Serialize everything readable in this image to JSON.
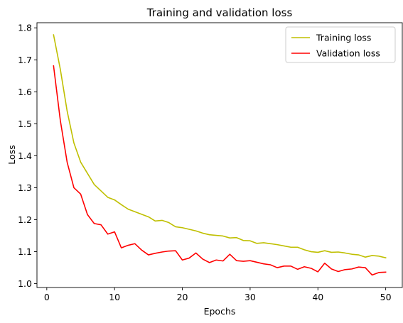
{
  "chart_data": {
    "type": "line",
    "title": "Training and validation loss",
    "xlabel": "Epochs",
    "ylabel": "Loss",
    "xlim": [
      -1.45,
      52.45
    ],
    "ylim": [
      0.988,
      1.816
    ],
    "xticks": [
      0,
      10,
      20,
      30,
      40,
      50
    ],
    "yticks": [
      1.0,
      1.1,
      1.2,
      1.3,
      1.4,
      1.5,
      1.6,
      1.7,
      1.8
    ],
    "grid": false,
    "legend_position": "top-right",
    "x": [
      1,
      2,
      3,
      4,
      5,
      6,
      7,
      8,
      9,
      10,
      11,
      12,
      13,
      14,
      15,
      16,
      17,
      18,
      19,
      20,
      21,
      22,
      23,
      24,
      25,
      26,
      27,
      28,
      29,
      30,
      31,
      32,
      33,
      34,
      35,
      36,
      37,
      38,
      39,
      40,
      41,
      42,
      43,
      44,
      45,
      46,
      47,
      48,
      49,
      50
    ],
    "series": [
      {
        "name": "Training loss",
        "color": "#bfbf00",
        "values": [
          1.778,
          1.67,
          1.54,
          1.44,
          1.38,
          1.345,
          1.31,
          1.29,
          1.27,
          1.262,
          1.247,
          1.233,
          1.225,
          1.217,
          1.209,
          1.196,
          1.198,
          1.191,
          1.178,
          1.175,
          1.17,
          1.165,
          1.158,
          1.153,
          1.151,
          1.149,
          1.143,
          1.144,
          1.135,
          1.134,
          1.126,
          1.128,
          1.125,
          1.122,
          1.118,
          1.114,
          1.114,
          1.106,
          1.1,
          1.098,
          1.103,
          1.098,
          1.099,
          1.096,
          1.092,
          1.09,
          1.083,
          1.088,
          1.086,
          1.081
        ]
      },
      {
        "name": "Validation loss",
        "color": "#ff0000",
        "values": [
          1.681,
          1.51,
          1.38,
          1.3,
          1.28,
          1.216,
          1.188,
          1.184,
          1.155,
          1.162,
          1.112,
          1.12,
          1.125,
          1.105,
          1.09,
          1.095,
          1.099,
          1.102,
          1.103,
          1.074,
          1.08,
          1.096,
          1.077,
          1.066,
          1.074,
          1.071,
          1.092,
          1.072,
          1.07,
          1.072,
          1.067,
          1.062,
          1.059,
          1.05,
          1.055,
          1.055,
          1.045,
          1.053,
          1.048,
          1.037,
          1.064,
          1.046,
          1.038,
          1.044,
          1.046,
          1.052,
          1.05,
          1.027,
          1.035,
          1.036
        ]
      }
    ]
  }
}
